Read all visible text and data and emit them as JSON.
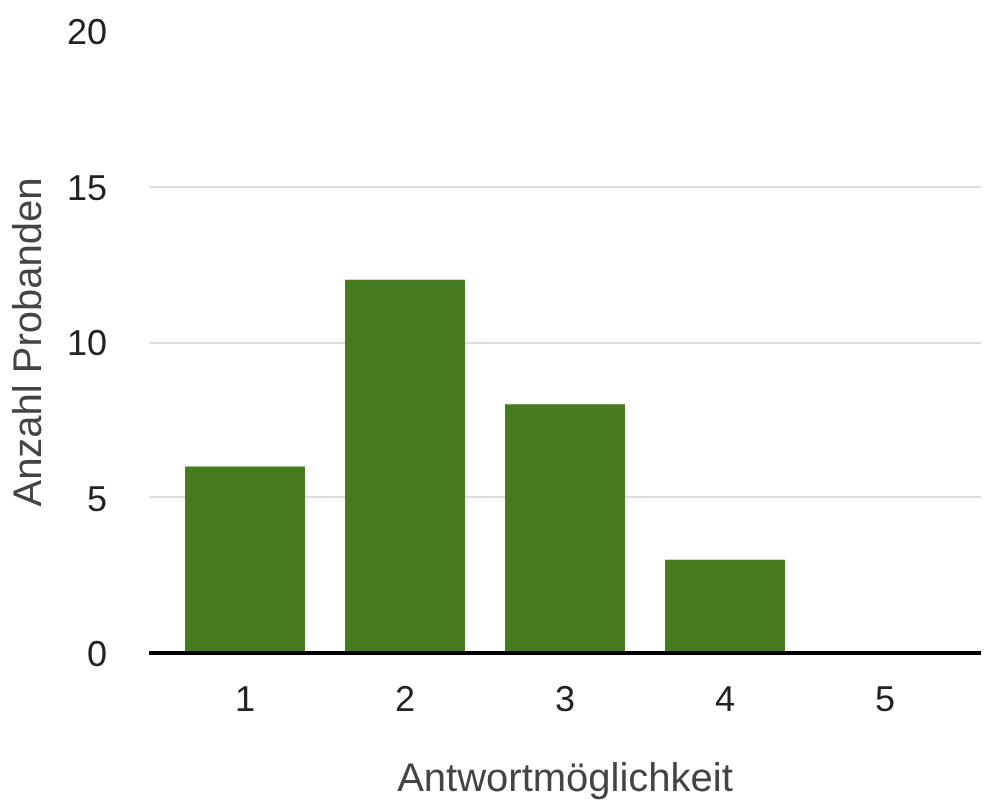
{
  "chart_data": {
    "type": "bar",
    "xlabel": "Antwortmöglichkeit",
    "ylabel": "Anzahl Probanden",
    "categories": [
      "1",
      "2",
      "3",
      "4",
      "5"
    ],
    "values": [
      6,
      12,
      8,
      3,
      0
    ],
    "color": "#457a1e",
    "ylim": [
      0,
      20
    ],
    "yticks": [
      0,
      5,
      10,
      15,
      20
    ],
    "grid": "y"
  }
}
